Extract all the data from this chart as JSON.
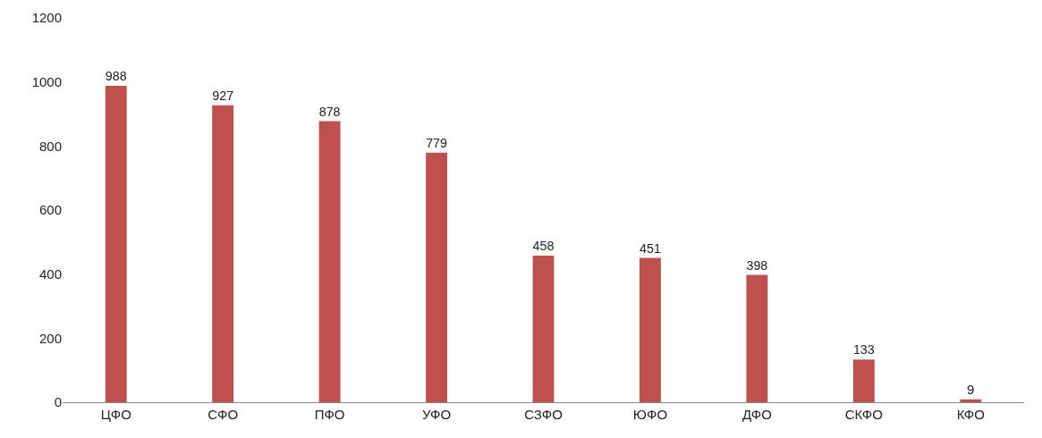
{
  "chart_data": {
    "type": "bar",
    "categories": [
      "ЦФО",
      "СФО",
      "ПФО",
      "УФО",
      "СЗФО",
      "ЮФО",
      "ДФО",
      "СКФО",
      "КФО"
    ],
    "values": [
      988,
      927,
      878,
      779,
      458,
      451,
      398,
      133,
      9
    ],
    "color": "#c0504d",
    "ylim": [
      0,
      1200
    ],
    "yticks": [
      0,
      200,
      400,
      600,
      800,
      1000,
      1200
    ],
    "grid": false,
    "legend": false,
    "data_labels": true
  }
}
